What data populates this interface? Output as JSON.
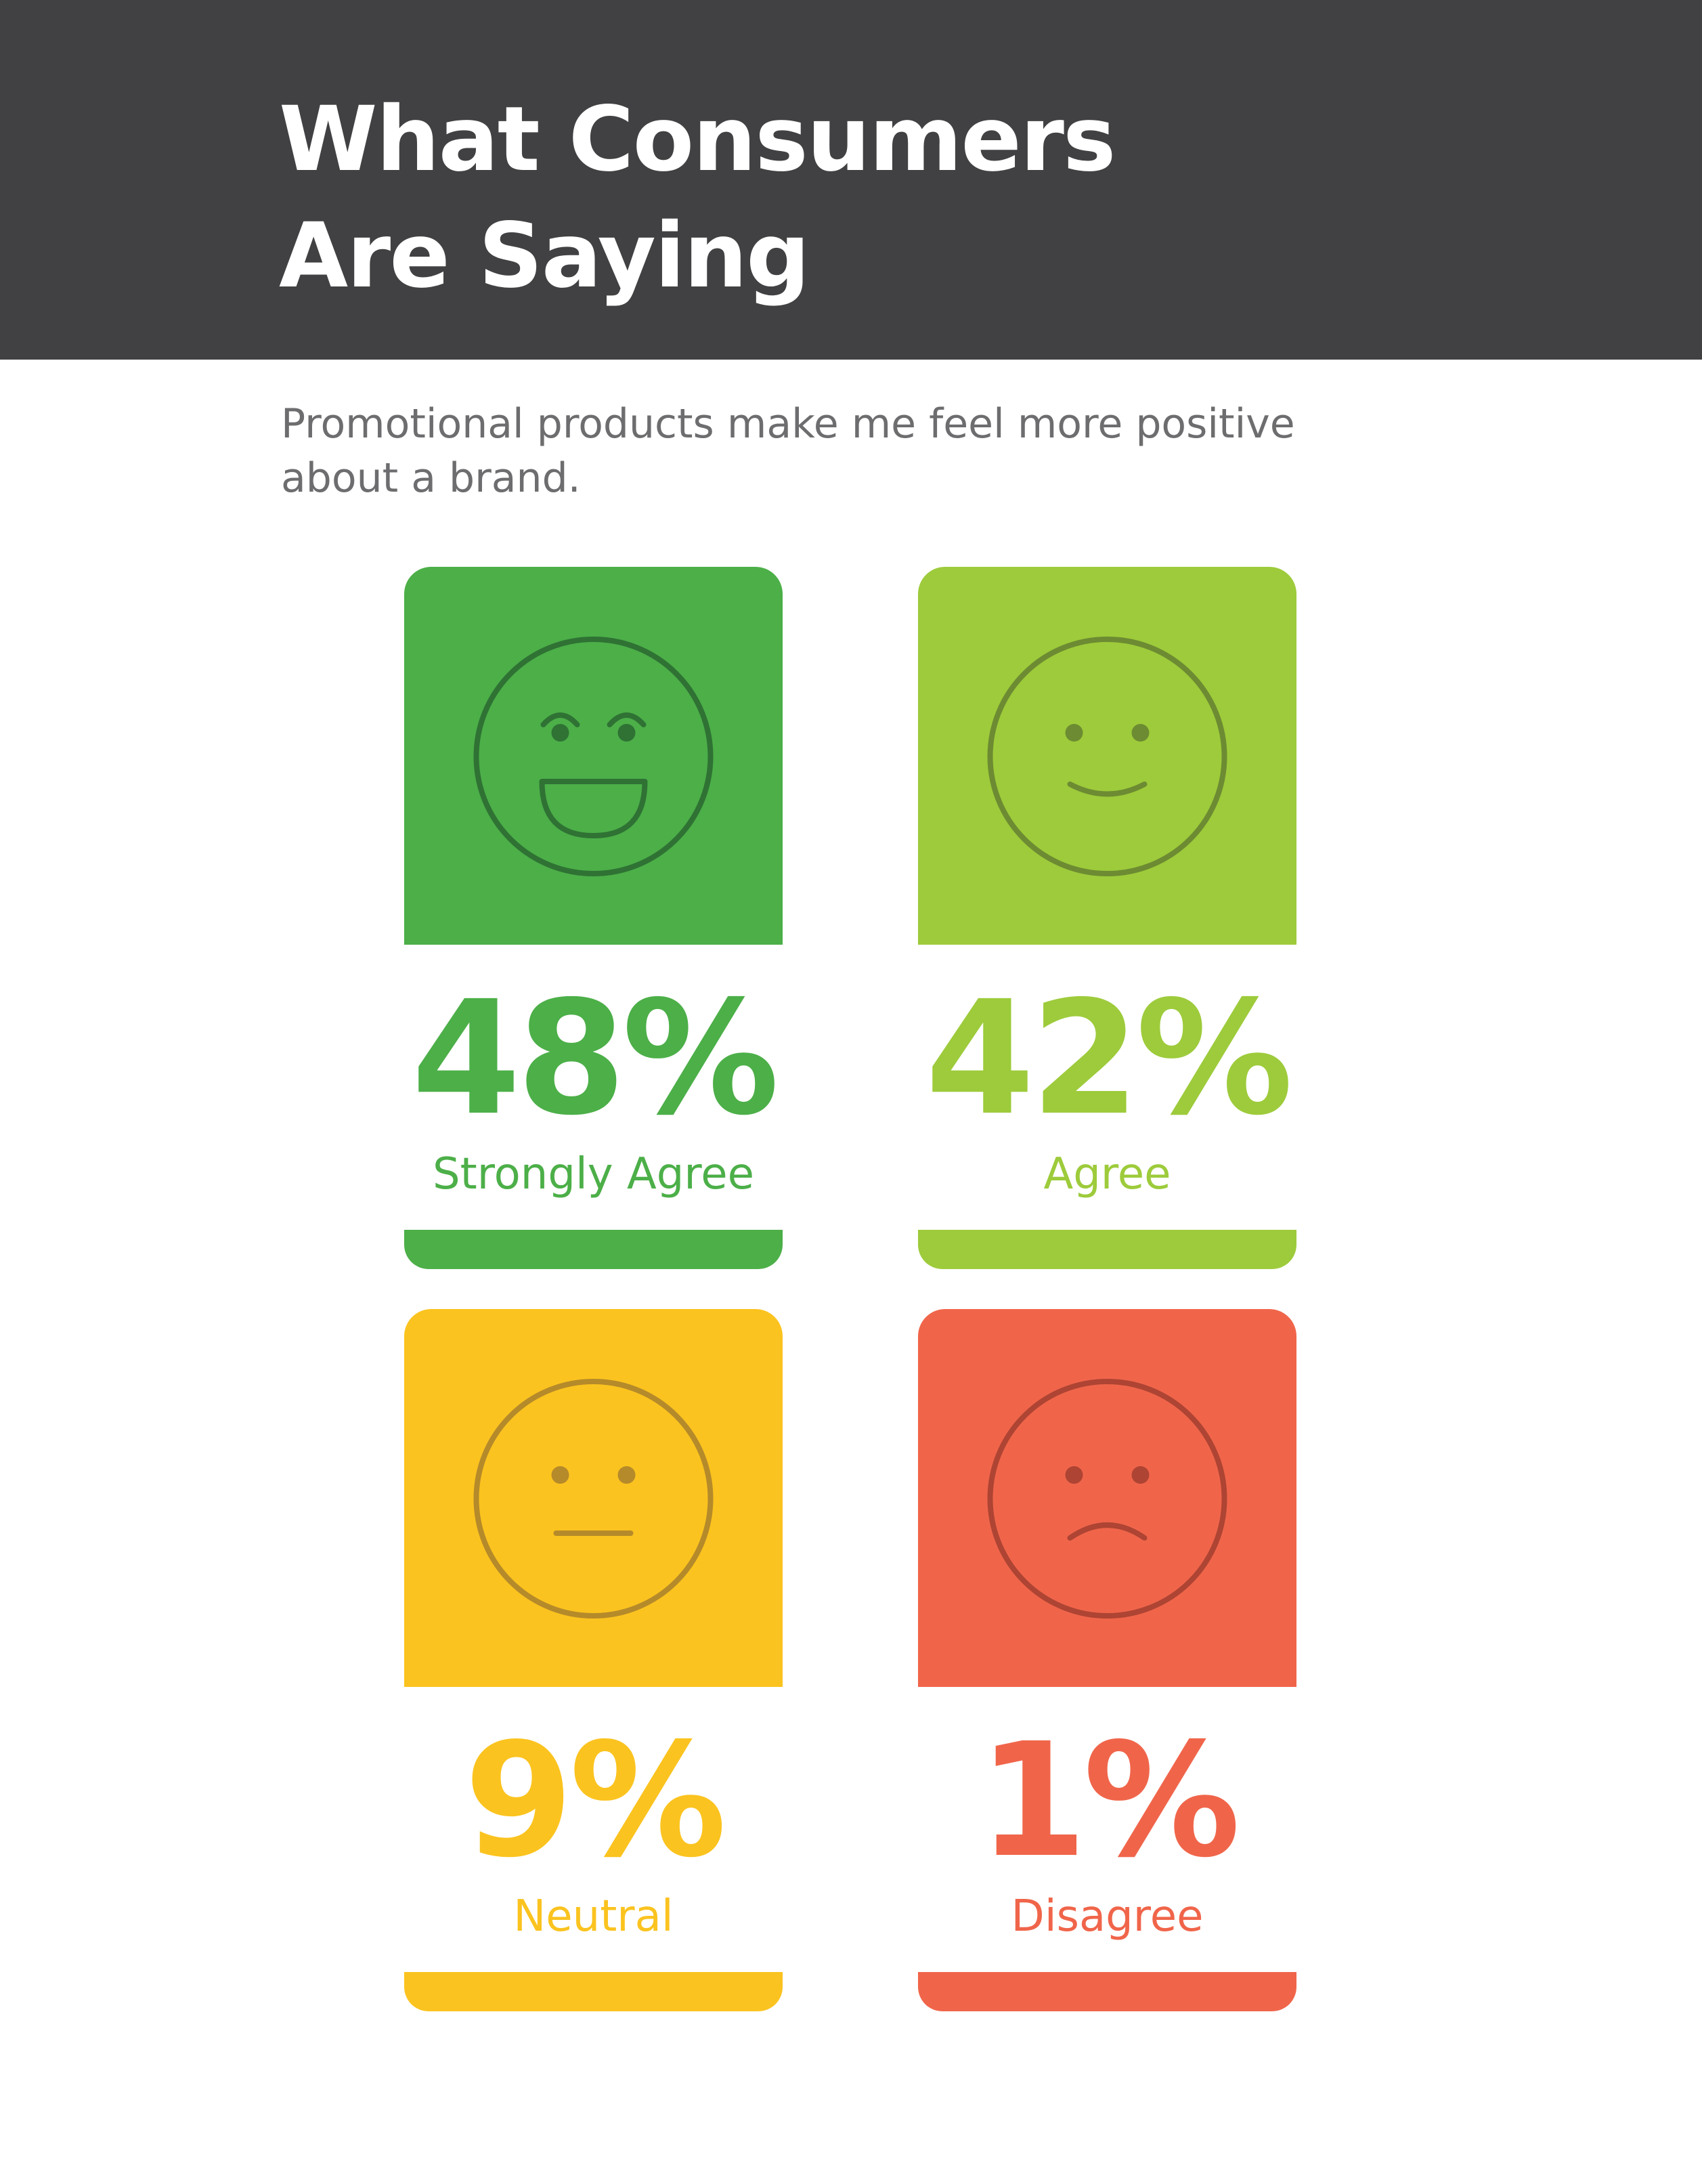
{
  "header": {
    "title": [
      "What Consumers",
      "Are Saying"
    ]
  },
  "subtitle": [
    "Promotional products make me feel more positive",
    "about a brand."
  ],
  "cards": [
    {
      "percent": "48%",
      "label": "Strongly Agree"
    },
    {
      "percent": "42%",
      "label": "Agree"
    },
    {
      "percent": "9%",
      "label": "Neutral"
    },
    {
      "percent": "1%",
      "label": "Disagree"
    }
  ]
}
